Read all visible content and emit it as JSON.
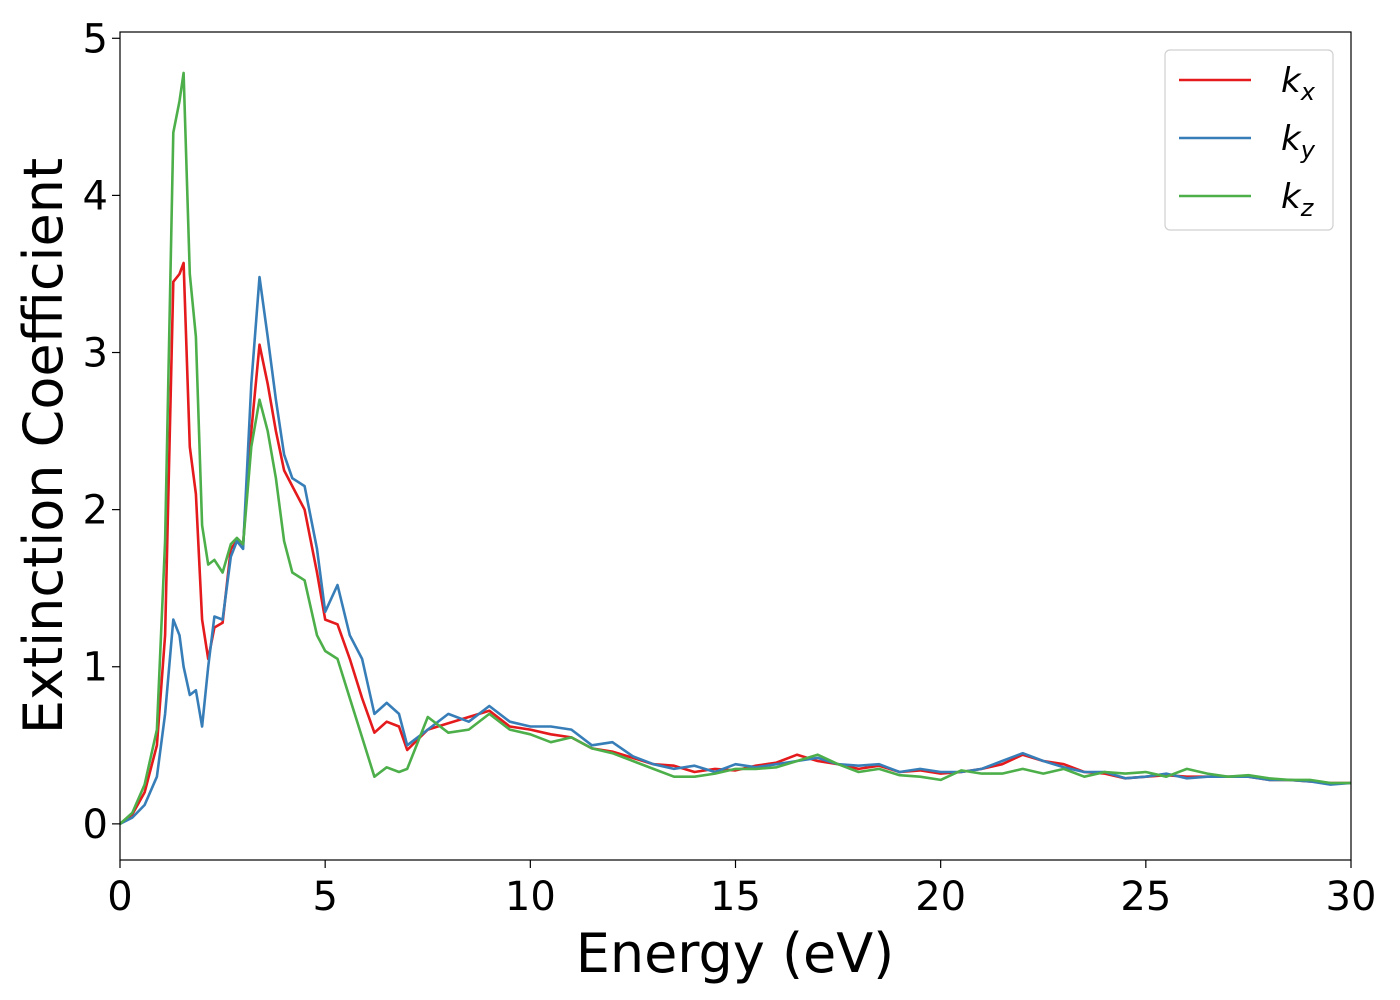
{
  "chart_data": {
    "type": "line",
    "x_label": "Energy (eV)",
    "y_label": "Extinction Coefficient",
    "x": [
      0,
      0.3,
      0.6,
      0.9,
      1.1,
      1.3,
      1.45,
      1.55,
      1.7,
      1.85,
      2.0,
      2.15,
      2.3,
      2.5,
      2.7,
      2.85,
      3.0,
      3.2,
      3.4,
      3.6,
      3.8,
      4.0,
      4.2,
      4.5,
      4.8,
      5.0,
      5.3,
      5.6,
      5.9,
      6.2,
      6.5,
      6.8,
      7.0,
      7.5,
      8,
      8.5,
      9,
      9.5,
      10,
      10.5,
      11,
      11.5,
      12,
      12.5,
      13,
      13.5,
      14,
      14.5,
      15,
      15.5,
      16,
      16.5,
      17,
      17.5,
      18,
      18.5,
      19,
      19.5,
      20,
      20.5,
      21,
      21.5,
      22,
      22.5,
      23,
      23.5,
      24,
      24.5,
      25,
      25.5,
      26,
      26.5,
      27,
      27.5,
      28,
      28.5,
      29,
      29.5,
      30
    ],
    "series": [
      {
        "name": "kx",
        "color": "#e41a1c",
        "values": [
          0,
          0.06,
          0.2,
          0.5,
          1.2,
          3.45,
          3.5,
          3.57,
          2.4,
          2.1,
          1.3,
          1.05,
          1.25,
          1.28,
          1.75,
          1.8,
          1.78,
          2.5,
          3.05,
          2.8,
          2.5,
          2.25,
          2.15,
          2.0,
          1.6,
          1.3,
          1.27,
          1.05,
          0.8,
          0.58,
          0.65,
          0.62,
          0.47,
          0.6,
          0.64,
          0.68,
          0.72,
          0.62,
          0.6,
          0.57,
          0.55,
          0.48,
          0.46,
          0.42,
          0.38,
          0.37,
          0.33,
          0.35,
          0.34,
          0.37,
          0.39,
          0.44,
          0.4,
          0.38,
          0.35,
          0.37,
          0.33,
          0.34,
          0.32,
          0.33,
          0.35,
          0.38,
          0.44,
          0.4,
          0.38,
          0.33,
          0.32,
          0.29,
          0.3,
          0.31,
          0.3,
          0.3,
          0.3,
          0.3,
          0.28,
          0.28,
          0.27,
          0.26,
          0.26
        ]
      },
      {
        "name": "ky",
        "color": "#377eb8",
        "values": [
          0,
          0.04,
          0.12,
          0.3,
          0.7,
          1.3,
          1.2,
          1.0,
          0.82,
          0.85,
          0.62,
          1.0,
          1.32,
          1.3,
          1.7,
          1.8,
          1.75,
          2.8,
          3.48,
          3.1,
          2.7,
          2.35,
          2.2,
          2.15,
          1.75,
          1.35,
          1.52,
          1.2,
          1.05,
          0.7,
          0.77,
          0.7,
          0.5,
          0.6,
          0.7,
          0.65,
          0.75,
          0.65,
          0.62,
          0.62,
          0.6,
          0.5,
          0.52,
          0.43,
          0.38,
          0.35,
          0.37,
          0.33,
          0.38,
          0.36,
          0.38,
          0.4,
          0.42,
          0.38,
          0.37,
          0.38,
          0.33,
          0.35,
          0.33,
          0.33,
          0.35,
          0.4,
          0.45,
          0.4,
          0.36,
          0.33,
          0.33,
          0.29,
          0.3,
          0.32,
          0.29,
          0.3,
          0.3,
          0.3,
          0.28,
          0.28,
          0.27,
          0.25,
          0.26
        ]
      },
      {
        "name": "kz",
        "color": "#4daf4a",
        "values": [
          0,
          0.07,
          0.25,
          0.6,
          1.8,
          4.4,
          4.6,
          4.78,
          3.5,
          3.1,
          1.9,
          1.65,
          1.68,
          1.6,
          1.78,
          1.82,
          1.78,
          2.4,
          2.7,
          2.5,
          2.2,
          1.8,
          1.6,
          1.55,
          1.2,
          1.1,
          1.05,
          0.8,
          0.55,
          0.3,
          0.36,
          0.33,
          0.35,
          0.68,
          0.58,
          0.6,
          0.7,
          0.6,
          0.57,
          0.52,
          0.55,
          0.48,
          0.45,
          0.4,
          0.35,
          0.3,
          0.3,
          0.32,
          0.35,
          0.35,
          0.36,
          0.4,
          0.44,
          0.38,
          0.33,
          0.35,
          0.31,
          0.3,
          0.28,
          0.34,
          0.32,
          0.32,
          0.35,
          0.32,
          0.35,
          0.3,
          0.33,
          0.32,
          0.33,
          0.3,
          0.35,
          0.32,
          0.3,
          0.31,
          0.29,
          0.28,
          0.28,
          0.26,
          0.26
        ]
      }
    ],
    "xlim": [
      0,
      30
    ],
    "xticks": [
      0,
      5,
      10,
      15,
      20,
      25,
      30
    ],
    "ylim": [
      -0.23,
      5.04
    ],
    "yticks": [
      0,
      1,
      2,
      3,
      4,
      5
    ],
    "grid": false,
    "legend": "upper right"
  }
}
